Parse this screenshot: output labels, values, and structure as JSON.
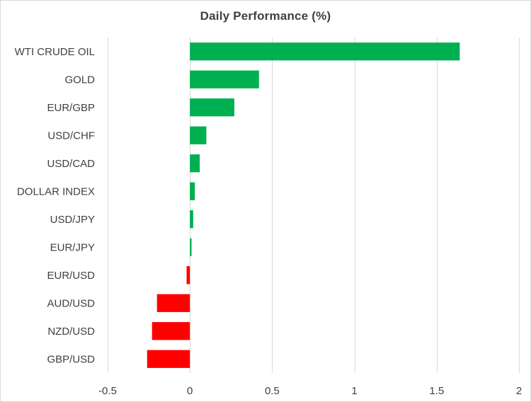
{
  "chart_data": {
    "type": "bar",
    "orientation": "horizontal",
    "title": "Daily Performance (%)",
    "xlabel": "",
    "ylabel": "",
    "categories": [
      "WTI CRUDE OIL",
      "GOLD",
      "EUR/GBP",
      "USD/CHF",
      "USD/CAD",
      "DOLLAR INDEX",
      "USD/JPY",
      "EUR/JPY",
      "EUR/USD",
      "AUD/USD",
      "NZD/USD",
      "GBP/USD"
    ],
    "values": [
      1.64,
      0.42,
      0.27,
      0.1,
      0.06,
      0.03,
      0.02,
      0.01,
      -0.02,
      -0.2,
      -0.23,
      -0.26
    ],
    "xlim": [
      -0.5,
      2
    ],
    "xticks": [
      -0.5,
      0,
      0.5,
      1,
      1.5,
      2
    ],
    "xtick_labels": [
      "-0.5",
      "0",
      "0.5",
      "1",
      "1.5",
      "2"
    ],
    "grid": true,
    "legend": "none",
    "colors": {
      "positive": "#00b050",
      "negative": "#ff0000",
      "grid": "#d9d9d9",
      "text": "#404040"
    }
  }
}
